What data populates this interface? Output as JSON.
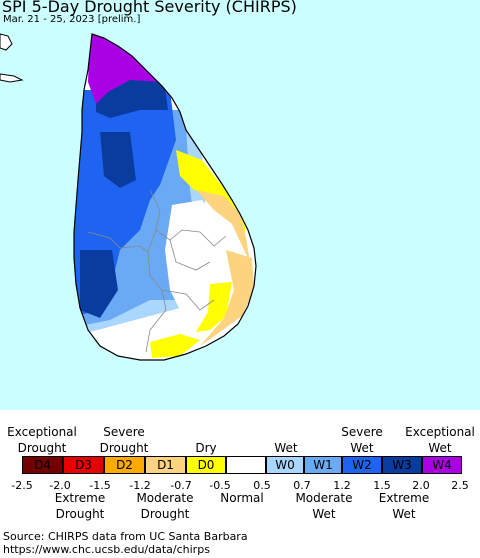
{
  "title": "SPI 5-Day Drought Severity (CHIRPS)",
  "subtitle": "Mar. 21 - 25, 2023 [prelim.]",
  "legend": {
    "upper_labels": [
      "Exceptional\nDrought",
      "Severe\nDrought",
      "Dry",
      "Wet",
      "Severe\nWet",
      "Exceptional\nWet"
    ],
    "lower_labels": [
      "Extreme\nDrought",
      "Moderate\nDrought",
      "Normal",
      "Moderate\nWet",
      "Extreme\nWet"
    ],
    "categories": [
      {
        "code": "D4",
        "color": "#730000"
      },
      {
        "code": "D3",
        "color": "#e60000"
      },
      {
        "code": "D2",
        "color": "#ffaa00"
      },
      {
        "code": "D1",
        "color": "#fcd37f"
      },
      {
        "code": "D0",
        "color": "#ffff00"
      },
      {
        "code": "",
        "color": "#ffffff"
      },
      {
        "code": "W0",
        "color": "#aad7ff"
      },
      {
        "code": "W1",
        "color": "#6aaaf5"
      },
      {
        "code": "W2",
        "color": "#1e64f0"
      },
      {
        "code": "W3",
        "color": "#0a3ca0"
      },
      {
        "code": "W4",
        "color": "#aa00e6"
      }
    ],
    "ticks": [
      "-2.5",
      "-2.0",
      "-1.5",
      "-1.2",
      "-0.7",
      "-0.5",
      "0.5",
      "0.7",
      "1.2",
      "1.5",
      "2.0",
      "2.5"
    ]
  },
  "source": {
    "line1": "Source: CHIRPS data from UC Santa Barbara",
    "line2": "https://www.chc.ucsb.edu/data/chirps"
  },
  "colors": {
    "ocean": "#ccffff",
    "land_outline": "#000000",
    "district_lines": "#888888"
  }
}
